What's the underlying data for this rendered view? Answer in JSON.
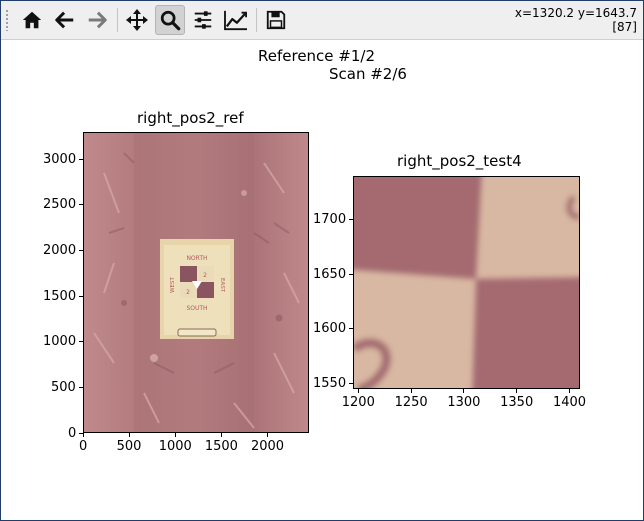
{
  "toolbar": {
    "buttons": [
      {
        "name": "home-button",
        "icon": "home-icon"
      },
      {
        "name": "back-button",
        "icon": "arrow-left-icon"
      },
      {
        "name": "forward-button",
        "icon": "arrow-right-icon"
      },
      {
        "name": "pan-button",
        "icon": "move-icon"
      },
      {
        "name": "zoom-button",
        "icon": "magnifier-icon",
        "active": true
      },
      {
        "name": "subplots-button",
        "icon": "sliders-icon"
      },
      {
        "name": "edit-axes-button",
        "icon": "line-chart-icon"
      },
      {
        "name": "save-button",
        "icon": "floppy-disk-icon"
      }
    ],
    "coords": "x=1320.2 y=1643.7",
    "pixel_value": "[87]"
  },
  "figure": {
    "suptitle_line1": "Reference #1/2",
    "suptitle_line2": "Scan #2/6"
  },
  "chart_data": [
    {
      "type": "image",
      "title": "right_pos2_ref",
      "xlim": [
        0,
        2450
      ],
      "ylim": [
        3300,
        0
      ],
      "xticks": [
        "0",
        "500",
        "1000",
        "1500",
        "2000"
      ],
      "yticks": [
        "0",
        "500",
        "1000",
        "1500",
        "2000",
        "2500",
        "3000"
      ],
      "sign_text": {
        "top": "NORTH",
        "bottom": "SOUTH",
        "left": "WEST",
        "right": "EAST",
        "digit_a": "2",
        "digit_b": "2"
      }
    },
    {
      "type": "image",
      "title": "right_pos2_test4",
      "xlim": [
        1195,
        1410
      ],
      "ylim": [
        1740,
        1545
      ],
      "xticks": [
        "1200",
        "1250",
        "1300",
        "1350",
        "1400"
      ],
      "yticks": [
        "1550",
        "1600",
        "1650",
        "1700"
      ]
    }
  ]
}
